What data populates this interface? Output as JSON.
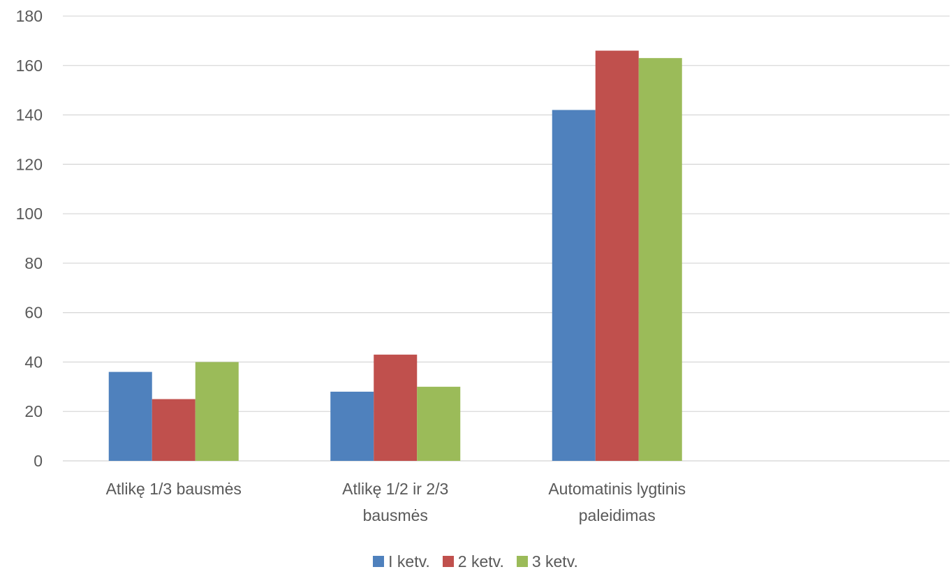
{
  "chart_data": {
    "type": "bar",
    "title": "",
    "xlabel": "",
    "ylabel": "",
    "categories": [
      [
        "Atlikę 1/3 bausmės"
      ],
      [
        "Atlikę 1/2 ir 2/3",
        "bausmės"
      ],
      [
        "Automatinis lygtinis",
        "paleidimas"
      ],
      [
        ""
      ]
    ],
    "series": [
      {
        "name": "I ketv.",
        "color": "#4F81BD",
        "values": [
          36,
          28,
          142,
          null
        ]
      },
      {
        "name": "2 ketv.",
        "color": "#C0504D",
        "values": [
          25,
          43,
          166,
          null
        ]
      },
      {
        "name": "3 ketv.",
        "color": "#9BBB59",
        "values": [
          40,
          30,
          163,
          null
        ]
      }
    ],
    "ylim": [
      0,
      180
    ],
    "yticks": [
      "0",
      "20",
      "40",
      "60",
      "80",
      "100",
      "120",
      "140",
      "160",
      "180"
    ],
    "grid": true,
    "legend_position": "bottom"
  }
}
